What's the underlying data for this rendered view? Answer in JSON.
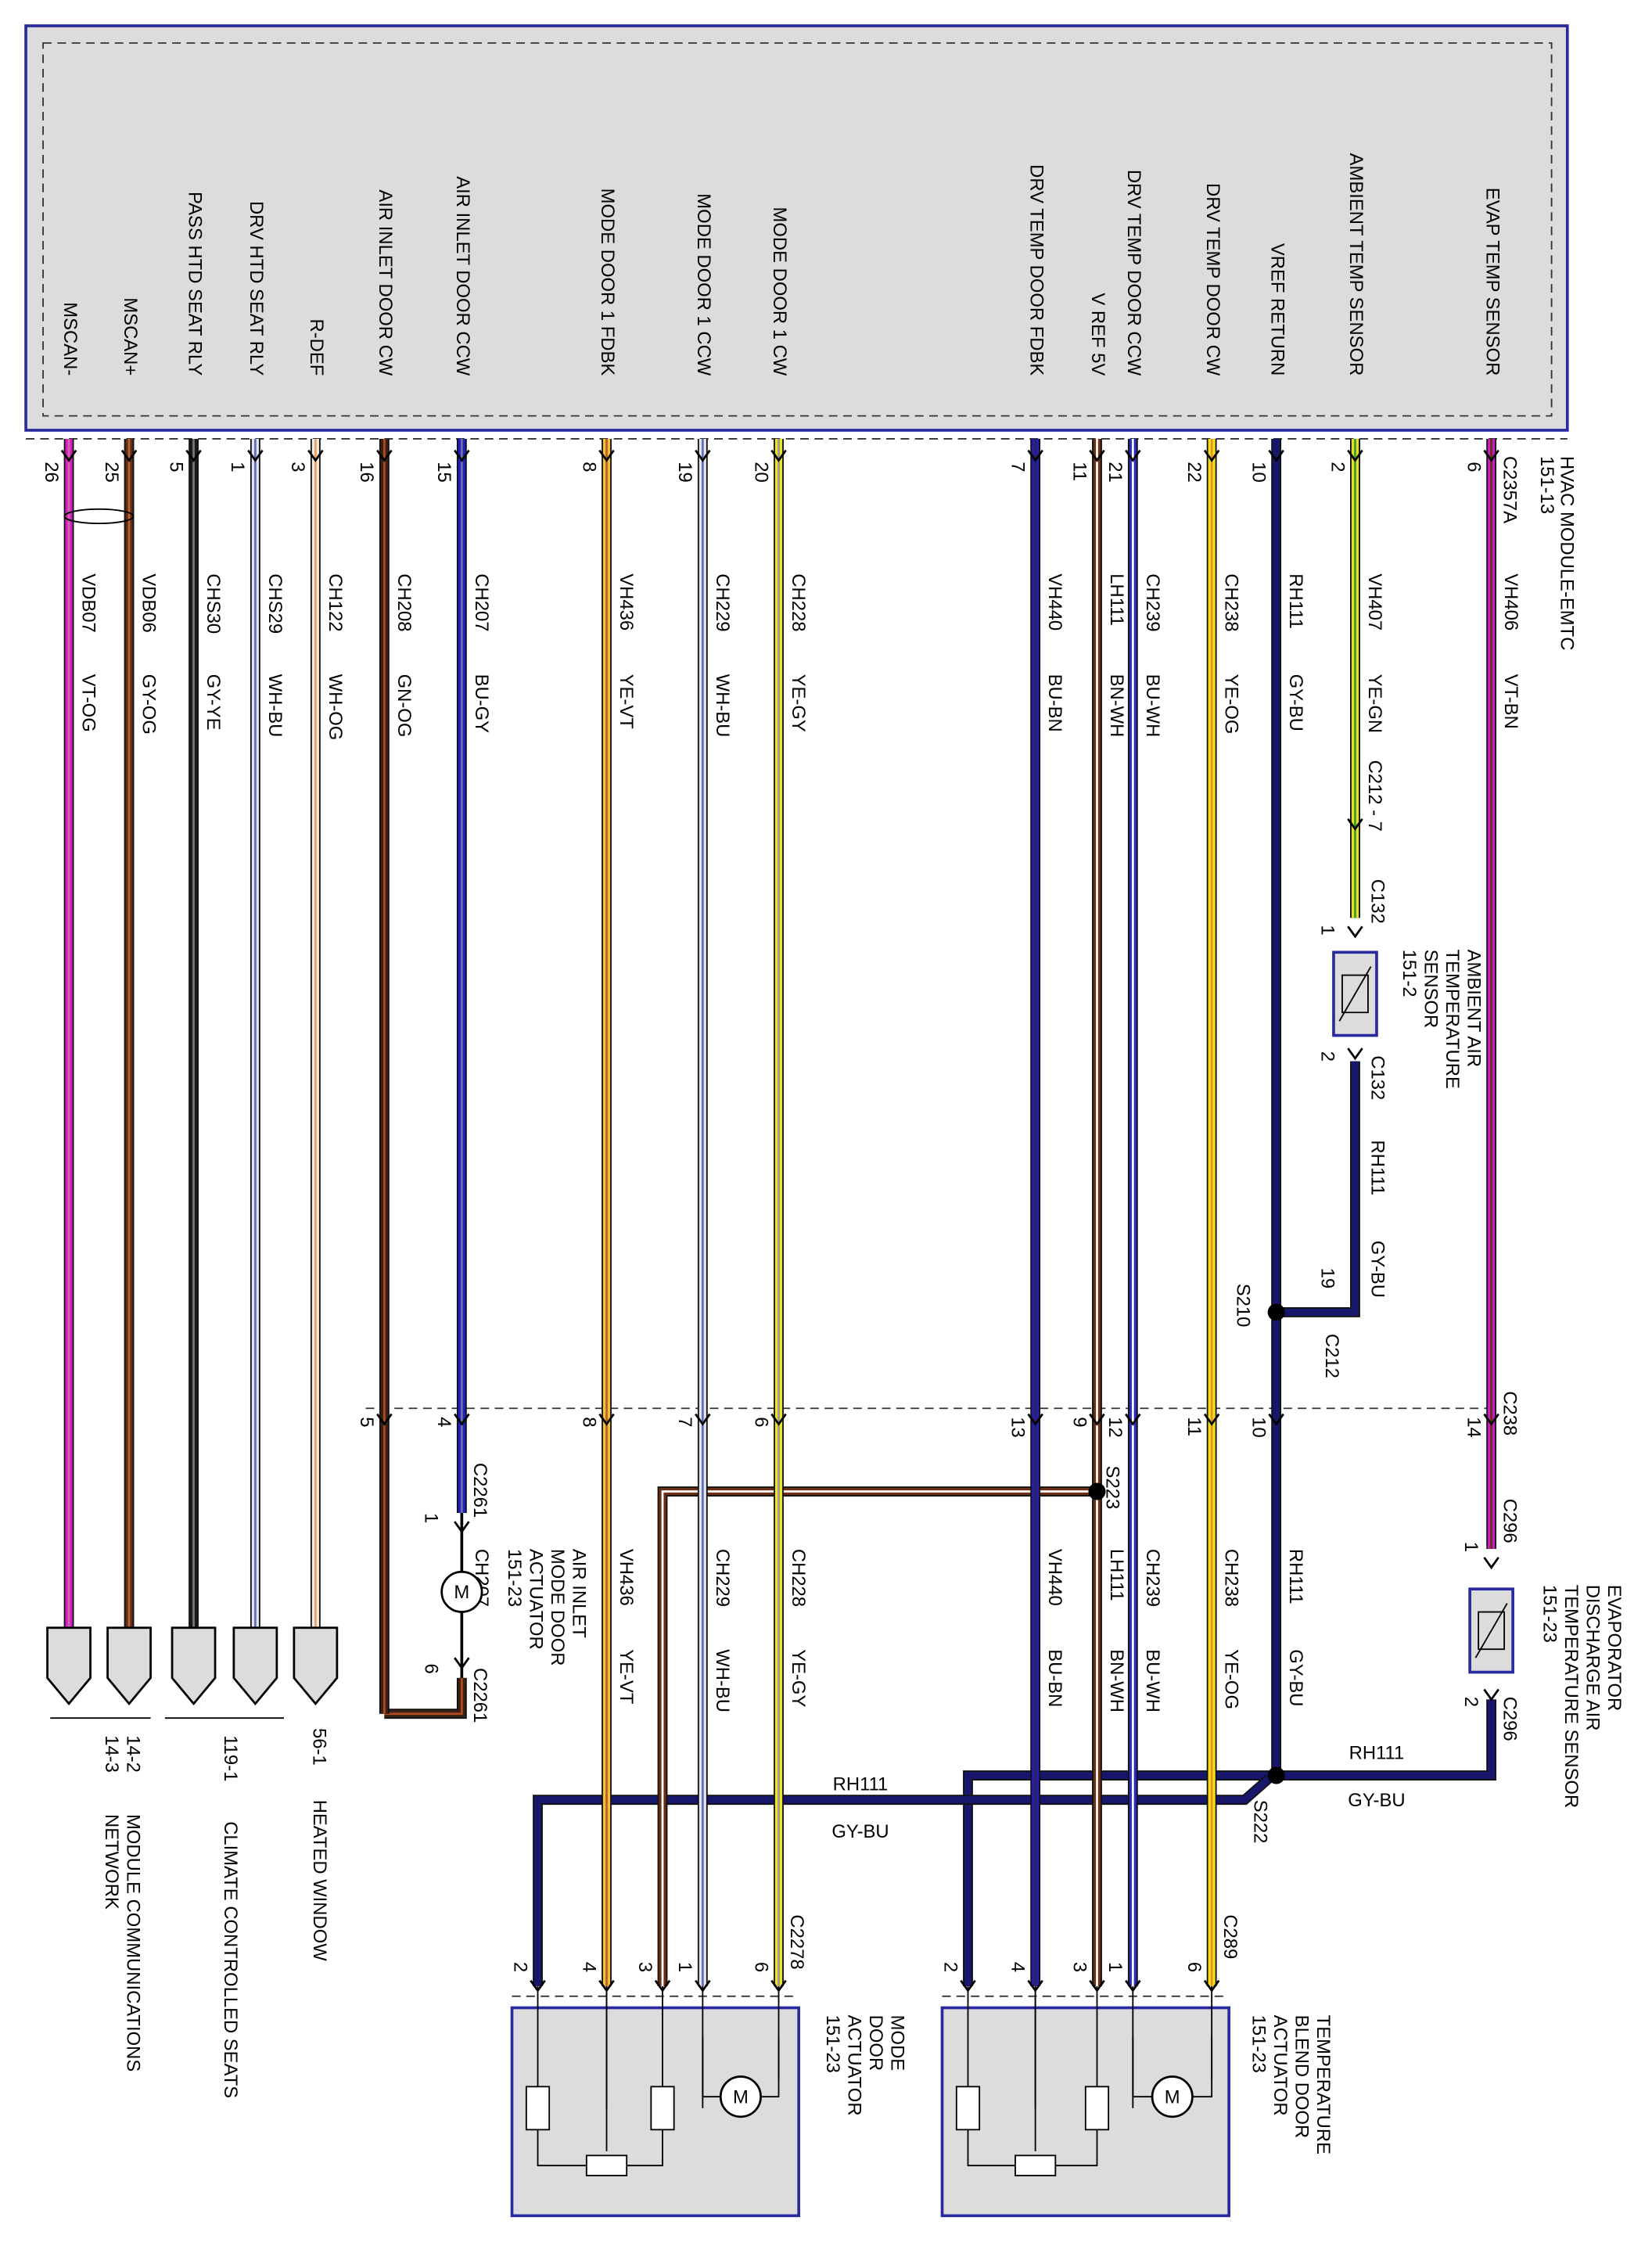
{
  "module": {
    "name": "HVAC MODULE-EMTC",
    "ref": "151-13",
    "connector": "C2357A"
  },
  "wires": [
    {
      "function": "EVAP TEMP SENSOR",
      "pin": 6,
      "circuit": "VH406",
      "color_code": "VT-BN",
      "c238_pin": 14
    },
    {
      "function": "AMBIENT TEMP SENSOR",
      "pin": 2,
      "circuit": "VH407",
      "color_code": "YE-GN"
    },
    {
      "function": "VREF RETURN",
      "pin": 10,
      "circuit": "RH111",
      "color_code": "GY-BU",
      "c238_pin": 10
    },
    {
      "function": "DRV TEMP DOOR CW",
      "pin": 22,
      "circuit": "CH238",
      "color_code": "YE-OG",
      "c238_pin": 11
    },
    {
      "function": "DRV TEMP DOOR CCW",
      "pin": 21,
      "circuit": "CH239",
      "color_code": "BU-WH",
      "c238_pin": 12
    },
    {
      "function": "V REF 5V",
      "pin": 11,
      "circuit": "LH111",
      "color_code": "BN-WH",
      "c238_pin": 9
    },
    {
      "function": "DRV TEMP DOOR FDBK",
      "pin": 7,
      "circuit": "VH440",
      "color_code": "BU-BN",
      "c238_pin": 13
    },
    {
      "function": "MODE DOOR 1 CW",
      "pin": 20,
      "circuit": "CH228",
      "color_code": "YE-GY",
      "c238_pin": 6
    },
    {
      "function": "MODE DOOR 1 CCW",
      "pin": 19,
      "circuit": "CH229",
      "color_code": "WH-BU",
      "c238_pin": 7
    },
    {
      "function": "MODE DOOR 1 FDBK",
      "pin": 8,
      "circuit": "VH436",
      "color_code": "YE-VT",
      "c238_pin": 8
    },
    {
      "function": "AIR INLET DOOR CCW",
      "pin": 15,
      "circuit": "CH207",
      "color_code": "BU-GY",
      "c238_pin": 4
    },
    {
      "function": "AIR INLET DOOR CW",
      "pin": 16,
      "circuit": "CH208",
      "color_code": "GN-OG",
      "c238_pin": 5
    },
    {
      "function": "R-DEF",
      "pin": 3,
      "circuit": "CH122",
      "color_code": "WH-OG"
    },
    {
      "function": "DRV HTD SEAT RLY",
      "pin": 1,
      "circuit": "CHS29",
      "color_code": "WH-BU"
    },
    {
      "function": "PASS HTD SEAT RLY",
      "pin": 5,
      "circuit": "CHS30",
      "color_code": "GY-YE"
    },
    {
      "function": "MSCAN+",
      "pin": 25,
      "circuit": "VDB06",
      "color_code": "GY-OG"
    },
    {
      "function": "MSCAN-",
      "pin": 26,
      "circuit": "VDB07",
      "color_code": "VT-OG"
    }
  ],
  "inline_connector": "C238",
  "ambient_sensor": {
    "label_lines": [
      "AMBIENT AIR",
      "TEMPERATURE",
      "SENSOR",
      "151-2"
    ],
    "inline": "C212 - 7",
    "connector": "C132",
    "pins": [
      1,
      2
    ],
    "return_circuit": "RH111",
    "return_color": "GY-BU",
    "splice_pin": 19,
    "splice_connector": "C212",
    "splice": "S210"
  },
  "evap_sensor": {
    "label_lines": [
      "EVAPORATOR",
      "DISCHARGE AIR",
      "TEMPERATURE SENSOR",
      "151-23"
    ],
    "connector": "C296",
    "pins": [
      1,
      2
    ],
    "return_circuit": "RH111",
    "return_color": "GY-BU"
  },
  "splice_return": "S222",
  "splice_vref": "S223",
  "mode_return": {
    "circuit": "RH111",
    "color": "GY-BU"
  },
  "air_inlet_actuator": {
    "label_lines": [
      "AIR INLET",
      "MODE DOOR",
      "ACTUATOR",
      "151-23"
    ],
    "connector": "C2261",
    "pins": [
      1,
      6
    ],
    "motor": "M"
  },
  "mode_actuator": {
    "label_lines": [
      "MODE",
      "DOOR",
      "ACTUATOR",
      "151-23"
    ],
    "connector": "C2278",
    "pins": [
      2,
      4,
      3,
      1,
      6
    ],
    "motor": "M"
  },
  "temp_actuator": {
    "label_lines": [
      "TEMPERATURE",
      "BLEND DOOR",
      "ACTUATOR",
      "151-23"
    ],
    "connector": "C289",
    "pins": [
      2,
      4,
      3,
      1,
      6
    ],
    "motor": "M"
  },
  "destinations": [
    {
      "refs": [
        "56-1"
      ],
      "label_lines": [
        "HEATED WINDOW"
      ]
    },
    {
      "refs": [
        "119-1"
      ],
      "label_lines": [
        "CLIMATE CONTROLLED SEATS"
      ]
    },
    {
      "refs": [
        "14-2",
        "14-3"
      ],
      "label_lines": [
        "MODULE COMMUNICATIONS",
        "NETWORK"
      ]
    }
  ]
}
